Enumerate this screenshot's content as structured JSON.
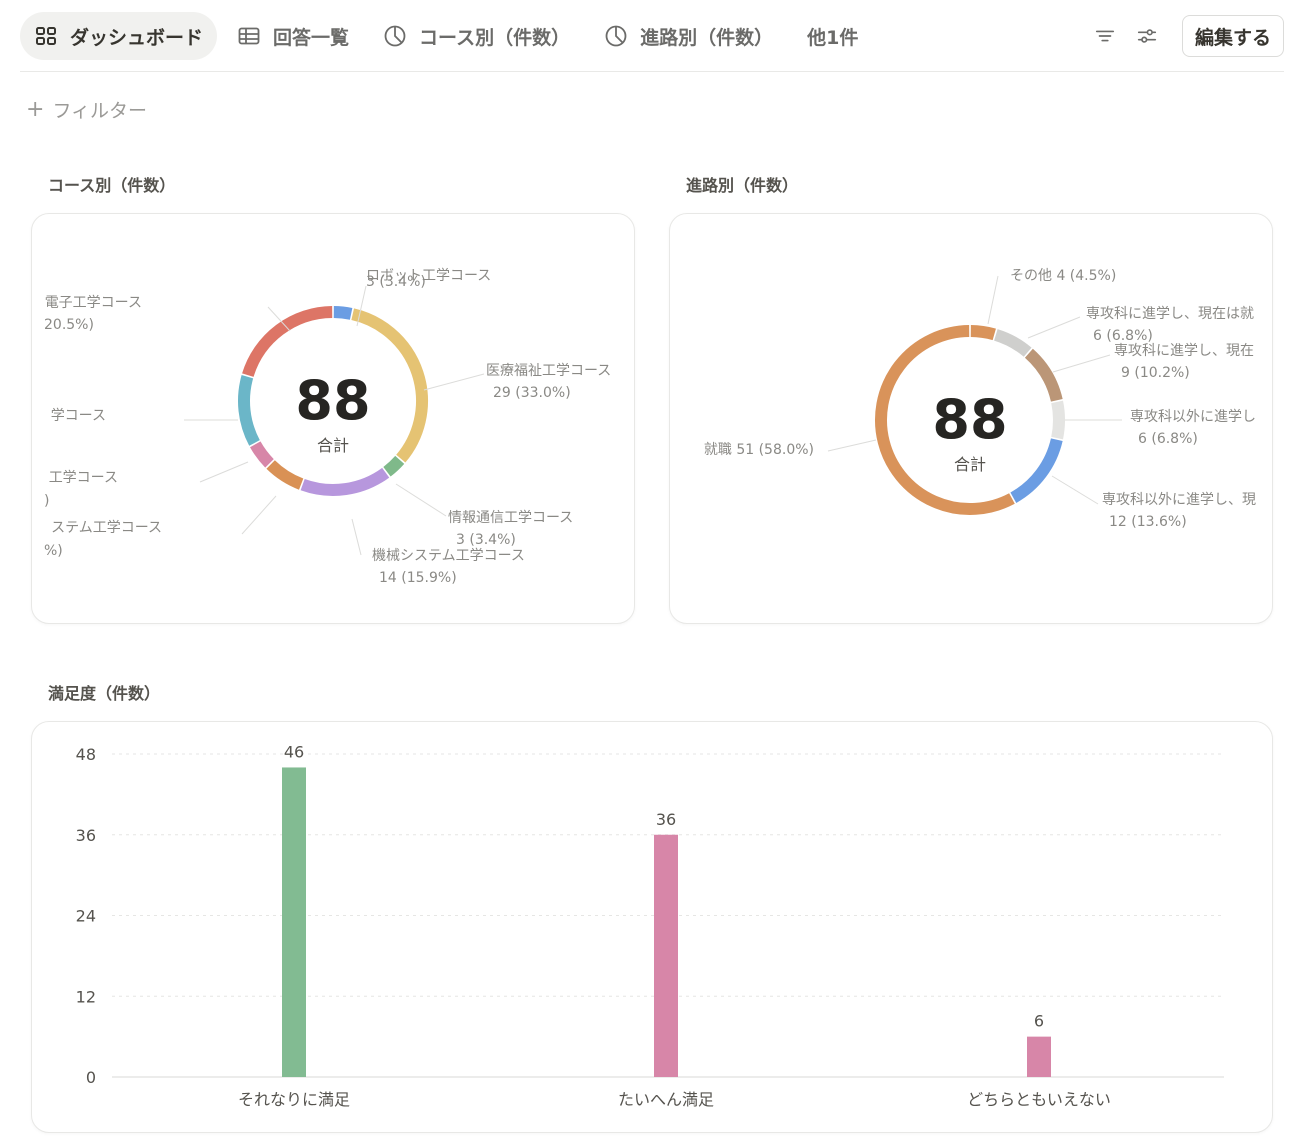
{
  "tabs": [
    {
      "label": "ダッシュボード",
      "icon": "dashboard-grid-icon",
      "active": true
    },
    {
      "label": "回答一覧",
      "icon": "table-icon",
      "active": false
    },
    {
      "label": "コース別（件数）",
      "icon": "pie-chart-icon",
      "active": false
    },
    {
      "label": "進路別（件数）",
      "icon": "pie-chart-icon",
      "active": false
    }
  ],
  "more_tabs": "他1件",
  "toolbar": {
    "filter_icon": "filter-lines-icon",
    "settings_icon": "sliders-icon",
    "edit_label": "編集する"
  },
  "filter": {
    "plus": "+",
    "label": "フィルター"
  },
  "sections": {
    "course_title": "コース別（件数）",
    "path_title": "進路別（件数）",
    "satisfaction_title": "満足度（件数）"
  },
  "chart_data": [
    {
      "type": "pie",
      "title": "コース別（件数）",
      "center_value": "88",
      "center_label": "合計",
      "slices": [
        {
          "name": "ロボット工学コース",
          "label": "ロボット工学コース",
          "value": 3,
          "pct": "3 (3.4%)",
          "color": "#6b9de3"
        },
        {
          "name": "医療福祉工学コース",
          "label": "医療福祉工学コース",
          "value": 29,
          "pct": "29 (33.0%)",
          "color": "#e5c373"
        },
        {
          "name": "情報通信工学コース",
          "label": "情報通信工学コース",
          "value": 3,
          "pct": "3 (3.4%)",
          "color": "#7fb98a"
        },
        {
          "name": "機械システム工学コース",
          "label": "機械システム工学コース",
          "value": 14,
          "pct": "14 (15.9%)",
          "color": "#b797dd"
        },
        {
          "name": "",
          "label": "ステム工学コース",
          "value": 6,
          "pct": "%)",
          "color": "#d99155"
        },
        {
          "name": "",
          "label": "工学コース",
          "value": 4,
          "pct": ")",
          "color": "#d786a8"
        },
        {
          "name": "",
          "label": "学コース",
          "value": 11,
          "pct": "",
          "color": "#6bb6c8"
        },
        {
          "name": "",
          "label": "電子工学コース",
          "value": 18,
          "pct": "20.5%)",
          "color": "#dd7566"
        }
      ]
    },
    {
      "type": "pie",
      "title": "進路別（件数）",
      "center_value": "88",
      "center_label": "合計",
      "slices": [
        {
          "name": "その他",
          "label": "その他",
          "value": 4,
          "pct": "4 (4.5%)",
          "color": "#d9935a"
        },
        {
          "name": "専攻科に進学し、現在は就",
          "label": "専攻科に進学し、現在は就",
          "value": 6,
          "pct": "6 (6.8%)",
          "color": "#cfcfcd"
        },
        {
          "name": "専攻科に進学し、現在",
          "label": "専攻科に進学し、現在",
          "value": 9,
          "pct": "9 (10.2%)",
          "color": "#bb9677"
        },
        {
          "name": "専攻科以外に進学し",
          "label": "専攻科以外に進学し",
          "value": 6,
          "pct": "6 (6.8%)",
          "color": "#e4e4e2"
        },
        {
          "name": "専攻科以外に進学し、現",
          "label": "専攻科以外に進学し、現",
          "value": 12,
          "pct": "12 (13.6%)",
          "color": "#6b9de3"
        },
        {
          "name": "就職",
          "label": "就職",
          "value": 51,
          "pct": "51 (58.0%)",
          "color": "#d9935a"
        }
      ]
    },
    {
      "type": "bar",
      "title": "満足度（件数）",
      "categories": [
        "それなりに満足",
        "たいへん満足",
        "どちらともいえない"
      ],
      "values": [
        46,
        36,
        6
      ],
      "value_labels": [
        "46",
        "36",
        "6"
      ],
      "colors": [
        "#82bb92",
        "#d786a8",
        "#d786a8"
      ],
      "yticks": [
        "0",
        "12",
        "24",
        "36",
        "48"
      ],
      "ylim": [
        0,
        48
      ],
      "grid": true
    }
  ]
}
